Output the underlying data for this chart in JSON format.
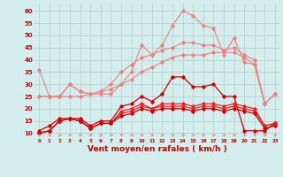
{
  "x": [
    0,
    1,
    2,
    3,
    4,
    5,
    6,
    7,
    8,
    9,
    10,
    11,
    12,
    13,
    14,
    15,
    16,
    17,
    18,
    19,
    20,
    21,
    22,
    23
  ],
  "series": [
    {
      "name": "line_pink_upper",
      "color": "#f08080",
      "linewidth": 0.8,
      "marker": "D",
      "markersize": 1.8,
      "y": [
        36,
        25,
        25,
        30,
        27,
        26,
        26,
        26,
        30,
        35,
        46,
        42,
        46,
        54,
        60,
        58,
        54,
        53,
        42,
        49,
        39,
        38,
        22,
        26
      ]
    },
    {
      "name": "line_pink_mid",
      "color": "#f08080",
      "linewidth": 0.8,
      "marker": "D",
      "markersize": 1.8,
      "y": [
        25,
        25,
        25,
        30,
        27,
        26,
        27,
        30,
        35,
        38,
        41,
        42,
        44,
        45,
        47,
        47,
        46,
        46,
        44,
        45,
        42,
        40,
        22,
        26
      ]
    },
    {
      "name": "line_pink_lower",
      "color": "#f08080",
      "linewidth": 0.8,
      "marker": "D",
      "markersize": 1.8,
      "y": [
        25,
        25,
        25,
        25,
        25,
        26,
        27,
        28,
        30,
        32,
        35,
        37,
        39,
        41,
        42,
        42,
        42,
        43,
        43,
        43,
        41,
        38,
        22,
        26
      ]
    },
    {
      "name": "line_red_jagged",
      "color": "#cc0000",
      "linewidth": 0.9,
      "marker": "D",
      "markersize": 1.8,
      "y": [
        11,
        13,
        16,
        16,
        16,
        13,
        15,
        15,
        21,
        22,
        25,
        23,
        26,
        33,
        33,
        29,
        29,
        30,
        25,
        25,
        11,
        11,
        11,
        14
      ]
    },
    {
      "name": "line_red_mid1",
      "color": "#ee2222",
      "linewidth": 0.9,
      "marker": "D",
      "markersize": 1.8,
      "y": [
        10,
        11,
        15,
        16,
        15,
        12,
        14,
        14,
        19,
        20,
        22,
        20,
        22,
        22,
        22,
        21,
        22,
        22,
        21,
        22,
        21,
        20,
        13,
        14
      ]
    },
    {
      "name": "line_red_mid2",
      "color": "#ee2222",
      "linewidth": 0.9,
      "marker": "D",
      "markersize": 1.8,
      "y": [
        10,
        11,
        15,
        16,
        15,
        12,
        14,
        14,
        18,
        19,
        21,
        20,
        21,
        21,
        21,
        20,
        21,
        21,
        20,
        21,
        20,
        19,
        13,
        14
      ]
    },
    {
      "name": "line_red_bottom",
      "color": "#cc0000",
      "linewidth": 0.9,
      "marker": "D",
      "markersize": 1.8,
      "y": [
        10,
        11,
        15,
        16,
        15,
        12,
        14,
        14,
        17,
        18,
        20,
        19,
        20,
        20,
        20,
        19,
        20,
        20,
        19,
        20,
        19,
        18,
        12,
        13
      ]
    }
  ],
  "xlabel": "Vent moyen/en rafales ( km/h )",
  "xlabel_color": "#cc0000",
  "xlabel_fontsize": 6.5,
  "ylabel_color": "#cc0000",
  "ylabel_fontsize": 5.5,
  "ylim": [
    8,
    63
  ],
  "yticks": [
    10,
    15,
    20,
    25,
    30,
    35,
    40,
    45,
    50,
    55,
    60
  ],
  "background_color": "#d4eded",
  "grid_color": "#b0cccc",
  "tick_color": "#cc0000",
  "arrow_color": "#ff7777"
}
